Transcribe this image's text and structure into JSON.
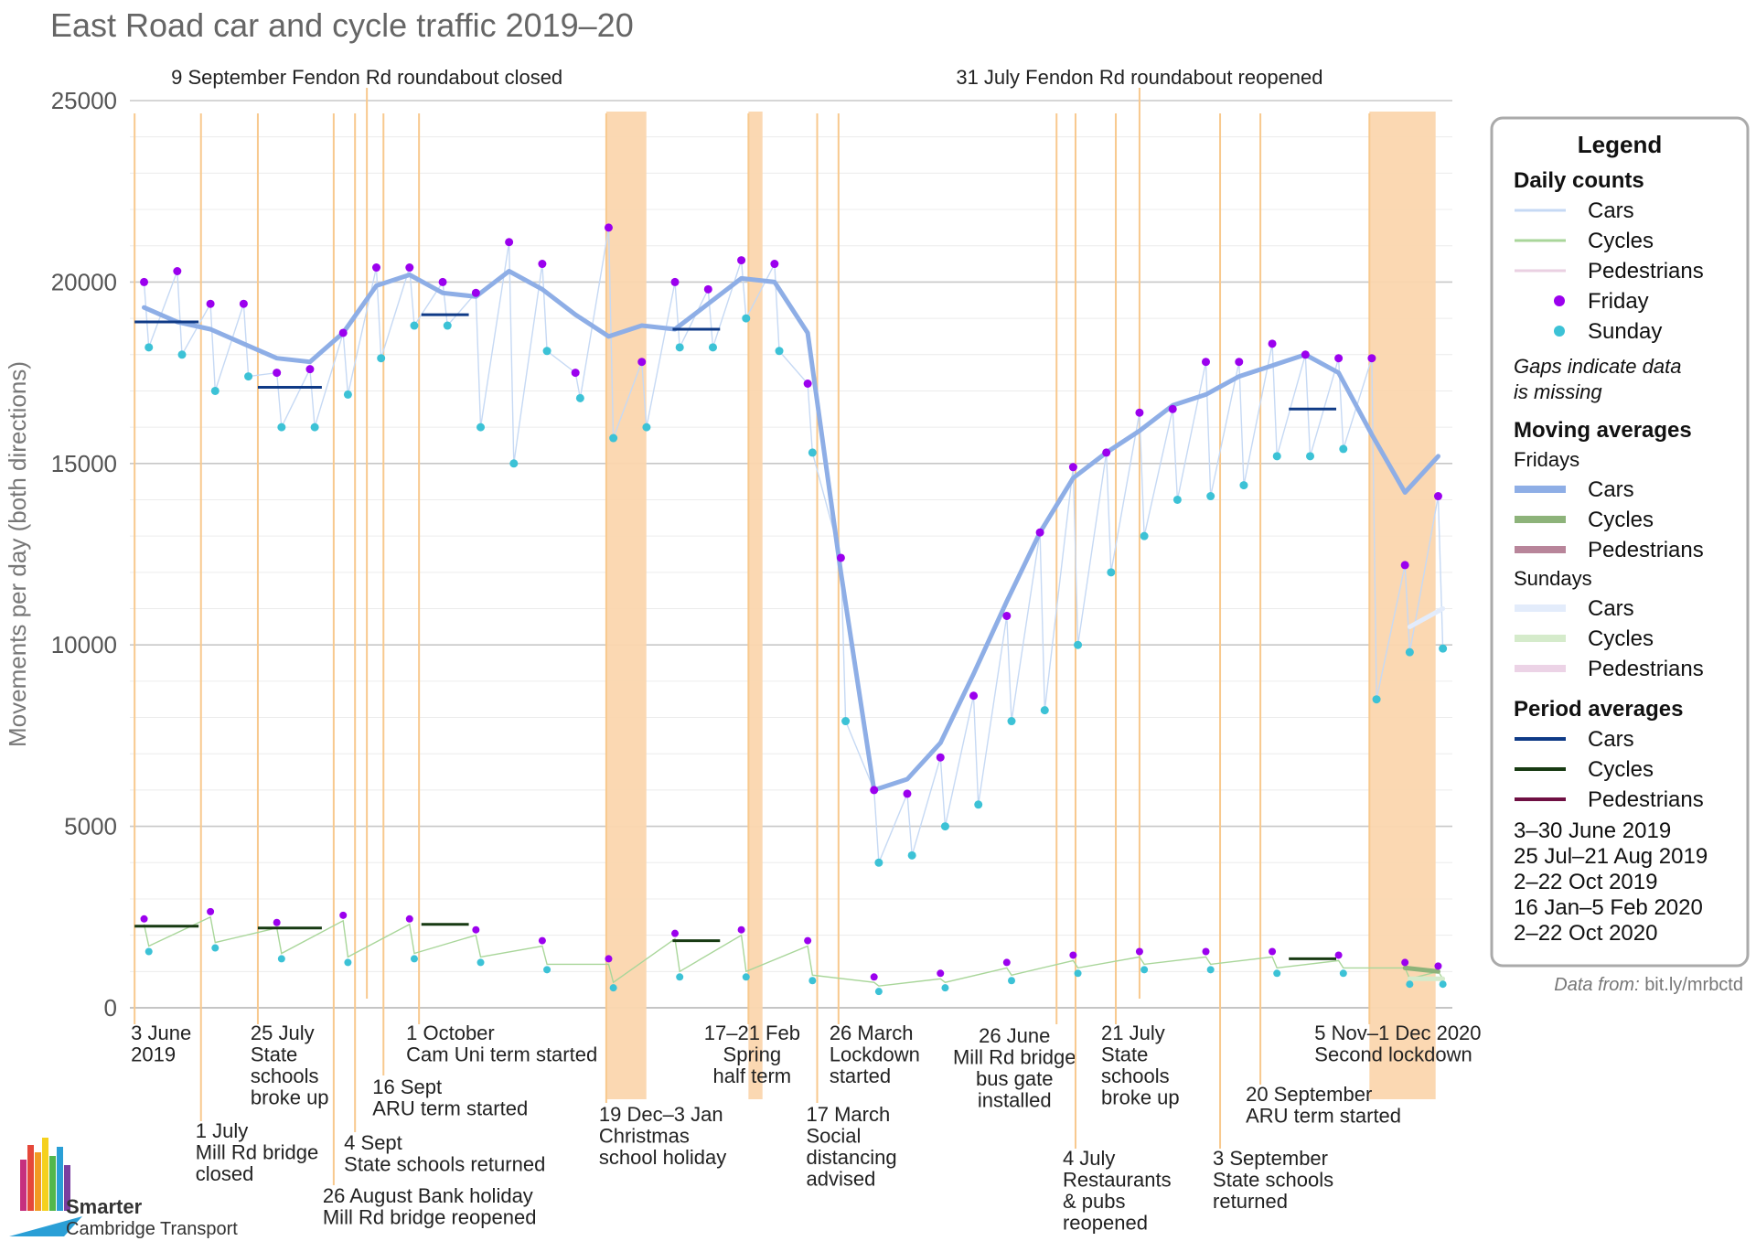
{
  "chart_data": {
    "type": "line",
    "title": "East Road car and cycle traffic 2019–20",
    "ylabel": "Movements per day (both directions)",
    "ylim": [
      0,
      25000
    ],
    "yticks": [
      0,
      5000,
      10000,
      15000,
      20000,
      25000
    ],
    "x_range": [
      "2019-06-01",
      "2020-12-10"
    ],
    "grid": true,
    "legend_position": "right",
    "top_annotations": [
      {
        "date": "2019-09-09",
        "text": "9 September Fendon Rd roundabout closed"
      },
      {
        "date": "2020-07-31",
        "text": "31 July Fendon Rd roundabout reopened"
      }
    ],
    "shaded_periods": [
      {
        "start": "2019-12-19",
        "end": "2020-01-03"
      },
      {
        "start": "2020-02-17",
        "end": "2020-02-21"
      },
      {
        "start": "2020-11-05",
        "end": "2020-12-01"
      }
    ],
    "event_lines": [
      {
        "date": "2019-06-03",
        "lines": [
          "3 June",
          "2019"
        ]
      },
      {
        "date": "2019-07-01",
        "lines": [
          "1 July",
          "Mill Rd bridge",
          "closed"
        ]
      },
      {
        "date": "2019-07-25",
        "lines": [
          "25 July",
          "State",
          "schools",
          "broke up"
        ]
      },
      {
        "date": "2019-08-26",
        "lines": [
          "26 August Bank holiday",
          "Mill Rd bridge reopened"
        ]
      },
      {
        "date": "2019-09-04",
        "lines": [
          "4 Sept",
          "State schools returned"
        ]
      },
      {
        "date": "2019-09-16",
        "lines": [
          "16 Sept",
          "ARU term started"
        ]
      },
      {
        "date": "2019-10-01",
        "lines": [
          "1 October",
          "Cam Uni term started"
        ]
      },
      {
        "date": "2019-12-19",
        "lines": [
          "19 Dec–3 Jan",
          "Christmas",
          "school holiday"
        ]
      },
      {
        "date": "2020-02-17",
        "lines": [
          "17–21 Feb",
          "Spring",
          "half term"
        ]
      },
      {
        "date": "2020-03-17",
        "lines": [
          "17 March",
          "Social",
          "distancing",
          "advised"
        ]
      },
      {
        "date": "2020-03-26",
        "lines": [
          "26 March",
          "Lockdown",
          "started"
        ]
      },
      {
        "date": "2020-06-26",
        "lines": [
          "26 June",
          "Mill Rd bridge",
          "bus  gate",
          "installed"
        ]
      },
      {
        "date": "2020-07-04",
        "lines": [
          "4 July",
          "Restaurants",
          "& pubs",
          "reopened"
        ]
      },
      {
        "date": "2020-07-21",
        "lines": [
          "21 July",
          "State",
          "schools",
          "broke up"
        ]
      },
      {
        "date": "2020-09-03",
        "lines": [
          "3 September",
          "State schools",
          "returned"
        ]
      },
      {
        "date": "2020-09-20",
        "lines": [
          "20 September",
          "ARU term started"
        ]
      },
      {
        "date": "2020-11-05",
        "lines": [
          "5 Nov–1 Dec 2020",
          "Second lockdown"
        ]
      }
    ],
    "colors": {
      "cars_daily": "#c6d9f4",
      "cycles_daily": "#a9d69a",
      "pedestrians_daily": "#ead0e2",
      "friday": "#9b00ee",
      "sunday": "#3cc2d6",
      "fri_cars_avg": "#8eaee6",
      "fri_cycles_avg": "#8db37a",
      "fri_ped_avg": "#b8859a",
      "sun_cars_avg": "#e3ecfb",
      "sun_cycles_avg": "#d5ebcb",
      "sun_ped_avg": "#ecd3e6",
      "gap_avg": "#a6aab6",
      "period_cars": "#0f3a86",
      "period_cycles": "#173a12",
      "period_ped": "#6f1043",
      "event_line": "#f8c98e",
      "shade": "#fbd6ae"
    },
    "series": [
      {
        "name": "Cars",
        "kind": "friday_moving_average",
        "x": [
          "2019-06-07",
          "2019-06-21",
          "2019-07-05",
          "2019-07-19",
          "2019-08-02",
          "2019-08-16",
          "2019-08-30",
          "2019-09-13",
          "2019-09-27",
          "2019-10-11",
          "2019-10-25",
          "2019-11-08",
          "2019-11-22",
          "2019-12-06",
          "2019-12-20",
          "2020-01-03",
          "2020-01-17",
          "2020-01-31",
          "2020-02-14",
          "2020-02-28",
          "2020-03-13",
          "2020-03-27",
          "2020-04-10",
          "2020-04-24",
          "2020-05-08",
          "2020-05-22",
          "2020-06-05",
          "2020-06-19",
          "2020-07-03",
          "2020-07-17",
          "2020-07-31",
          "2020-08-14",
          "2020-08-28",
          "2020-09-11",
          "2020-09-25",
          "2020-10-09",
          "2020-10-23",
          "2020-11-06",
          "2020-11-20",
          "2020-12-04"
        ],
        "y": [
          19300,
          18900,
          18700,
          18300,
          17900,
          17800,
          18600,
          19900,
          20200,
          19700,
          19600,
          20300,
          19800,
          19100,
          18500,
          18800,
          18700,
          19400,
          20100,
          20000,
          18600,
          12000,
          6000,
          6300,
          7300,
          9200,
          11200,
          13100,
          14600,
          15300,
          15900,
          16600,
          16900,
          17400,
          17700,
          18000,
          17500,
          15800,
          14200,
          15200
        ]
      },
      {
        "name": "Cycles",
        "kind": "friday_moving_average",
        "x": [
          "2019-06-07",
          "2019-07-05",
          "2019-08-02",
          "2019-08-30",
          "2019-09-27",
          "2019-10-25",
          "2019-11-22",
          "2019-12-20",
          "2020-01-17",
          "2020-02-14",
          "2020-03-13",
          "2020-04-10",
          "2020-05-08",
          "2020-06-05",
          "2020-07-03",
          "2020-07-31",
          "2020-08-28",
          "2020-09-25",
          "2020-10-23",
          "2020-11-20",
          "2020-12-04"
        ],
        "y": [
          2300,
          2500,
          2200,
          2400,
          2300,
          2000,
          1700,
          1200,
          1900,
          2000,
          1700,
          700,
          800,
          1100,
          1300,
          1400,
          1400,
          1400,
          1300,
          1100,
          1000
        ]
      },
      {
        "name": "Cars",
        "kind": "sunday_moving_average",
        "x": [
          "2019-06-09",
          "2019-07-07",
          "2019-08-04",
          "2019-09-01",
          "2019-09-29",
          "2019-10-27",
          "2019-11-24",
          "2019-12-22",
          "2020-01-19",
          "2020-02-16",
          "2020-03-15",
          "2020-04-12",
          "2020-05-10",
          "2020-06-07",
          "2020-07-05",
          "2020-08-02",
          "2020-08-30",
          "2020-09-27",
          "2020-10-25",
          "2020-11-22",
          "2020-12-06"
        ],
        "y": [
          18200,
          17300,
          16300,
          16100,
          17700,
          17800,
          17500,
          17000,
          17800,
          18200,
          16500,
          4200,
          5900,
          9100,
          12100,
          13400,
          14500,
          15000,
          15200,
          10500,
          11000
        ]
      },
      {
        "name": "Cycles",
        "kind": "sunday_moving_average",
        "x": [
          "2019-06-09",
          "2019-07-07",
          "2019-08-04",
          "2019-09-01",
          "2019-09-29",
          "2019-10-27",
          "2019-11-24",
          "2019-12-22",
          "2020-01-19",
          "2020-02-16",
          "2020-03-15",
          "2020-04-12",
          "2020-05-10",
          "2020-06-07",
          "2020-07-05",
          "2020-08-02",
          "2020-08-30",
          "2020-09-27",
          "2020-10-25",
          "2020-11-22",
          "2020-12-06"
        ],
        "y": [
          1700,
          1800,
          1500,
          1400,
          1500,
          1400,
          1200,
          700,
          1000,
          1000,
          900,
          600,
          700,
          900,
          1100,
          1200,
          1200,
          1100,
          1100,
          800,
          800
        ]
      },
      {
        "name": "Friday",
        "kind": "friday_points",
        "x": [
          "2019-06-07",
          "2019-06-21",
          "2019-07-05",
          "2019-07-19",
          "2019-08-02",
          "2019-08-16",
          "2019-08-30",
          "2019-09-13",
          "2019-09-27",
          "2019-10-11",
          "2019-10-25",
          "2019-11-08",
          "2019-11-22",
          "2019-12-06",
          "2019-12-20",
          "2020-01-03",
          "2020-01-17",
          "2020-01-31",
          "2020-02-14",
          "2020-02-28",
          "2020-03-13",
          "2020-03-27",
          "2020-04-10",
          "2020-04-24",
          "2020-05-08",
          "2020-05-22",
          "2020-06-05",
          "2020-06-19",
          "2020-07-03",
          "2020-07-17",
          "2020-07-31",
          "2020-08-14",
          "2020-08-28",
          "2020-09-11",
          "2020-09-25",
          "2020-10-09",
          "2020-10-23",
          "2020-11-06",
          "2020-11-20",
          "2020-12-04"
        ],
        "y": [
          20000,
          20300,
          19400,
          19400,
          17500,
          17600,
          18600,
          20400,
          20400,
          20000,
          19700,
          21100,
          20500,
          17500,
          21500,
          17800,
          20000,
          19800,
          20600,
          20500,
          17200,
          12400,
          6000,
          5900,
          6900,
          8600,
          10800,
          13100,
          14900,
          15300,
          16400,
          16500,
          17800,
          17800,
          18300,
          18000,
          17900,
          17900,
          12200,
          14100
        ]
      },
      {
        "name": "Sunday",
        "kind": "sunday_points",
        "x": [
          "2019-06-09",
          "2019-06-23",
          "2019-07-07",
          "2019-07-21",
          "2019-08-04",
          "2019-08-18",
          "2019-09-01",
          "2019-09-15",
          "2019-09-29",
          "2019-10-13",
          "2019-10-27",
          "2019-11-10",
          "2019-11-24",
          "2019-12-08",
          "2019-12-22",
          "2020-01-05",
          "2020-01-19",
          "2020-02-02",
          "2020-02-16",
          "2020-03-01",
          "2020-03-15",
          "2020-03-29",
          "2020-04-12",
          "2020-04-26",
          "2020-05-10",
          "2020-05-24",
          "2020-06-07",
          "2020-06-21",
          "2020-07-05",
          "2020-07-19",
          "2020-08-02",
          "2020-08-16",
          "2020-08-30",
          "2020-09-13",
          "2020-09-27",
          "2020-10-11",
          "2020-10-25",
          "2020-11-08",
          "2020-11-22",
          "2020-12-06"
        ],
        "y": [
          18200,
          18000,
          17000,
          17400,
          16000,
          16000,
          16900,
          17900,
          18800,
          18800,
          16000,
          15000,
          18100,
          16800,
          15700,
          16000,
          18200,
          18200,
          19000,
          18100,
          15300,
          7900,
          4000,
          4200,
          5000,
          5600,
          7900,
          8200,
          10000,
          12000,
          13000,
          14000,
          14100,
          14400,
          15200,
          15200,
          15400,
          8500,
          9800,
          9900
        ]
      },
      {
        "name": "Cars",
        "kind": "period_average",
        "x_start": [
          "2019-06-03",
          "2019-07-25",
          "2019-10-02",
          "2020-01-16",
          "2020-10-02"
        ],
        "x_end": [
          "2019-06-30",
          "2019-08-21",
          "2019-10-22",
          "2020-02-05",
          "2020-10-22"
        ],
        "y": [
          18900,
          17100,
          19100,
          18700,
          16500
        ]
      },
      {
        "name": "Cycles",
        "kind": "period_average",
        "x_start": [
          "2019-06-03",
          "2019-07-25",
          "2019-10-02",
          "2020-01-16",
          "2020-10-02"
        ],
        "x_end": [
          "2019-06-30",
          "2019-08-21",
          "2019-10-22",
          "2020-02-05",
          "2020-10-22"
        ],
        "y": [
          2250,
          2200,
          2300,
          1850,
          1350
        ]
      }
    ],
    "legend": {
      "title": "Legend",
      "daily_heading": "Daily counts",
      "daily": [
        "Cars",
        "Cycles",
        "Pedestrians",
        "Friday",
        "Sunday"
      ],
      "gaps_note": [
        "Gaps indicate data",
        "is missing"
      ],
      "moving_heading": "Moving averages",
      "fridays_label": "Fridays",
      "sundays_label": "Sundays",
      "moving_items": [
        "Cars",
        "Cycles",
        "Pedestrians"
      ],
      "period_heading": "Period averages",
      "period_items": [
        "Cars",
        "Cycles",
        "Pedestrians"
      ],
      "period_ranges": [
        "3–30 June 2019",
        "25 Jul–21 Aug 2019",
        "2–22 Oct 2019",
        "16 Jan–5 Feb 2020",
        "2–22 Oct 2020"
      ]
    }
  },
  "source_label": "Data from:",
  "source_link": "bit.ly/mrbctd",
  "logo": {
    "line1": "Smarter",
    "line2": "Cambridge Transport"
  }
}
